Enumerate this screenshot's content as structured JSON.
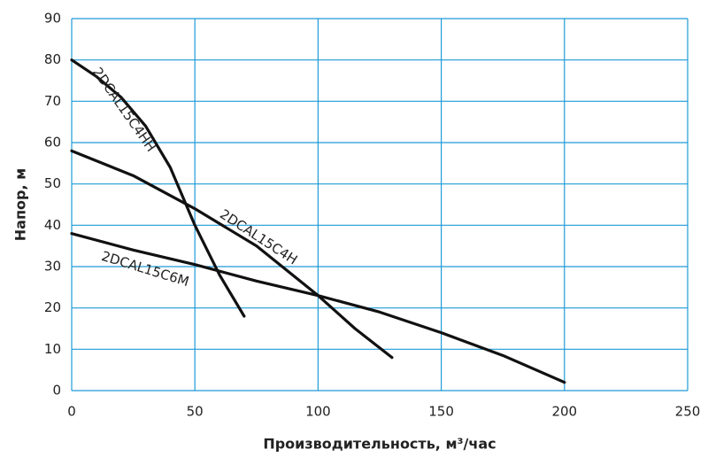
{
  "chart_data": {
    "type": "line",
    "x_label": "Производительность, м³/час",
    "y_label": "Напор, м",
    "xlim": [
      0,
      250
    ],
    "xticks": [
      0,
      50,
      100,
      150,
      200,
      250
    ],
    "ylim": [
      0,
      90
    ],
    "yticks": [
      0,
      10,
      20,
      30,
      40,
      50,
      60,
      70,
      80,
      90
    ],
    "grid": true,
    "grid_color": "#1f9bd7",
    "series": [
      {
        "name": "2DCAL15C4HH",
        "color": "#111111",
        "x": [
          0,
          10,
          20,
          30,
          40,
          50,
          60,
          70
        ],
        "values": [
          80,
          76,
          71,
          64,
          54,
          40,
          28,
          18
        ]
      },
      {
        "name": "2DCAL15C4H",
        "color": "#111111",
        "x": [
          0,
          25,
          50,
          75,
          100,
          115,
          130
        ],
        "values": [
          58,
          52,
          44,
          35,
          23,
          15,
          8
        ]
      },
      {
        "name": "2DCAL15C6M",
        "color": "#111111",
        "x": [
          0,
          25,
          50,
          75,
          100,
          125,
          150,
          175,
          200
        ],
        "values": [
          38,
          34,
          30.5,
          26.5,
          23,
          19,
          14,
          8.5,
          2
        ]
      }
    ]
  }
}
